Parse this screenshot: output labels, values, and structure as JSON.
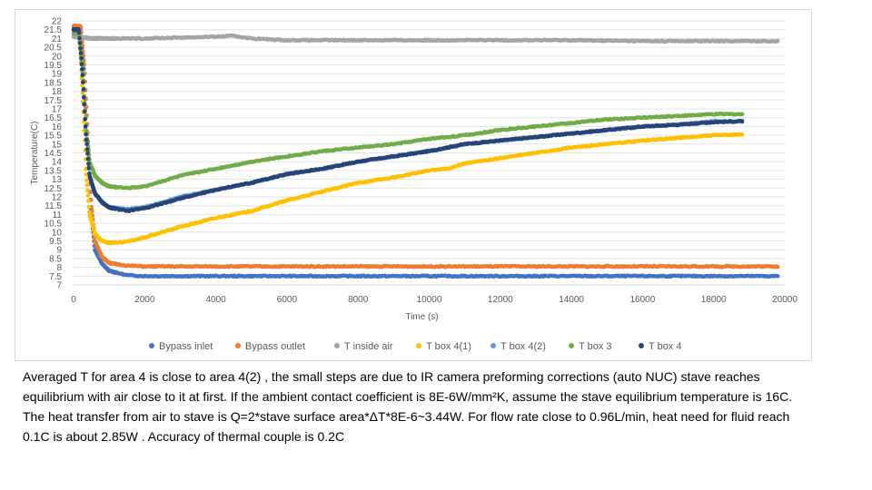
{
  "chart_data": {
    "type": "scatter",
    "xlabel": "Time (s)",
    "ylabel": "Temperature(C)",
    "xlim": [
      0,
      20000
    ],
    "ylim": [
      7,
      22
    ],
    "xticks": [
      0,
      2000,
      4000,
      6000,
      8000,
      10000,
      12000,
      14000,
      16000,
      18000,
      20000
    ],
    "yticks": [
      7,
      7.5,
      8,
      8.5,
      9,
      9.5,
      10,
      10.5,
      11,
      11.5,
      12,
      12.5,
      13,
      13.5,
      14,
      14.5,
      15,
      15.5,
      16,
      16.5,
      17,
      17.5,
      18,
      18.5,
      19,
      19.5,
      20,
      20.5,
      21,
      21.5,
      22
    ],
    "grid": "horizontal",
    "legend_position": "bottom",
    "series": [
      {
        "name": "Bypass inlet",
        "color": "#4472c4",
        "x": [
          0,
          200,
          300,
          400,
          500,
          600,
          800,
          1000,
          1500,
          2000,
          4000,
          8000,
          12000,
          16000,
          19800
        ],
        "y": [
          21.5,
          21.5,
          19,
          15,
          11,
          9,
          8.2,
          7.8,
          7.55,
          7.5,
          7.5,
          7.5,
          7.5,
          7.5,
          7.5
        ]
      },
      {
        "name": "Bypass outlet",
        "color": "#ed7d31",
        "x": [
          0,
          200,
          300,
          400,
          500,
          600,
          800,
          1000,
          1500,
          2000,
          4000,
          8000,
          12000,
          16000,
          19800
        ],
        "y": [
          21.7,
          21.7,
          19.5,
          15.5,
          11.5,
          9.5,
          8.6,
          8.25,
          8.1,
          8.05,
          8.05,
          8.05,
          8.05,
          8.05,
          8.05
        ]
      },
      {
        "name": "T inside air",
        "color": "#a5a5a5",
        "x": [
          0,
          500,
          1000,
          2000,
          3000,
          4000,
          4500,
          5000,
          6000,
          8000,
          10000,
          12000,
          14000,
          16000,
          18000,
          19800
        ],
        "y": [
          21.1,
          21,
          21,
          21,
          21.05,
          21.1,
          21.15,
          21.0,
          20.9,
          20.9,
          20.9,
          20.9,
          20.9,
          20.85,
          20.85,
          20.85
        ]
      },
      {
        "name": "T box 4(1)",
        "color": "#ffc000",
        "x": [
          0,
          150,
          250,
          350,
          450,
          600,
          800,
          1000,
          1200,
          1500,
          2000,
          3000,
          4000,
          5000,
          6000,
          7000,
          8000,
          9000,
          10000,
          10500,
          11000,
          12000,
          13000,
          14000,
          15000,
          16000,
          17000,
          18000,
          18800
        ],
        "y": [
          21.5,
          21.5,
          18,
          13.5,
          11,
          9.9,
          9.5,
          9.4,
          9.4,
          9.45,
          9.7,
          10.3,
          10.8,
          11.2,
          11.8,
          12.3,
          12.8,
          13.1,
          13.5,
          13.6,
          13.9,
          14.2,
          14.5,
          14.8,
          15.0,
          15.2,
          15.35,
          15.5,
          15.55
        ]
      },
      {
        "name": "T box 4(2)",
        "color": "#5b9bd5",
        "x": [
          0,
          150,
          250,
          350,
          450,
          600,
          800,
          1000,
          1500,
          2000,
          3000,
          4000,
          5000,
          6000,
          7000,
          8000,
          9000,
          10000,
          10500,
          11000,
          12000,
          13000,
          14000,
          15000,
          16000,
          17000,
          18000,
          18800
        ],
        "y": [
          21.5,
          21.5,
          19,
          15.5,
          13.2,
          12.2,
          11.7,
          11.4,
          11.3,
          11.4,
          12.0,
          12.4,
          12.8,
          13.3,
          13.6,
          14.0,
          14.3,
          14.6,
          14.8,
          15.0,
          15.2,
          15.4,
          15.6,
          15.8,
          16.0,
          16.1,
          16.3,
          16.3
        ]
      },
      {
        "name": "T box 3",
        "color": "#70ad47",
        "x": [
          0,
          150,
          250,
          350,
          450,
          600,
          800,
          1000,
          1500,
          2000,
          3000,
          4000,
          5000,
          6000,
          7000,
          8000,
          9000,
          10000,
          11000,
          12000,
          13000,
          14000,
          15000,
          16000,
          17000,
          18000,
          18800
        ],
        "y": [
          21.3,
          21.3,
          19.5,
          16,
          14,
          13.2,
          12.8,
          12.6,
          12.5,
          12.6,
          13.2,
          13.6,
          14.0,
          14.3,
          14.6,
          14.8,
          15.0,
          15.3,
          15.5,
          15.8,
          16.0,
          16.2,
          16.4,
          16.5,
          16.6,
          16.7,
          16.7
        ]
      },
      {
        "name": "T box 4",
        "color": "#264478",
        "x": [
          0,
          150,
          250,
          350,
          450,
          600,
          800,
          1000,
          1500,
          2000,
          3000,
          4000,
          5000,
          6000,
          7000,
          8000,
          9000,
          10000,
          10500,
          11000,
          12000,
          13000,
          14000,
          15000,
          16000,
          17000,
          18000,
          18800
        ],
        "y": [
          21.5,
          21.5,
          19,
          15.5,
          13.2,
          12.2,
          11.7,
          11.4,
          11.2,
          11.35,
          11.9,
          12.4,
          12.8,
          13.3,
          13.6,
          14.0,
          14.3,
          14.6,
          14.8,
          15.0,
          15.2,
          15.4,
          15.6,
          15.8,
          16.0,
          16.1,
          16.25,
          16.3
        ]
      }
    ]
  },
  "caption": "Averaged T for area 4 is close to area 4(2) , the small steps are due to IR camera preforming corrections (auto NUC) stave reaches equilibrium with air close to it at first. If the ambient contact coefficient is 8E-6W/mm²K, assume the stave equilibrium temperature is 16C. The heat transfer from air to stave is Q=2*stave surface area*ΔT*8E-6~3.44W. For flow rate close to 0.96L/min, heat need for fluid reach 0.1C is about 2.85W . Accuracy of thermal couple is 0.2C"
}
